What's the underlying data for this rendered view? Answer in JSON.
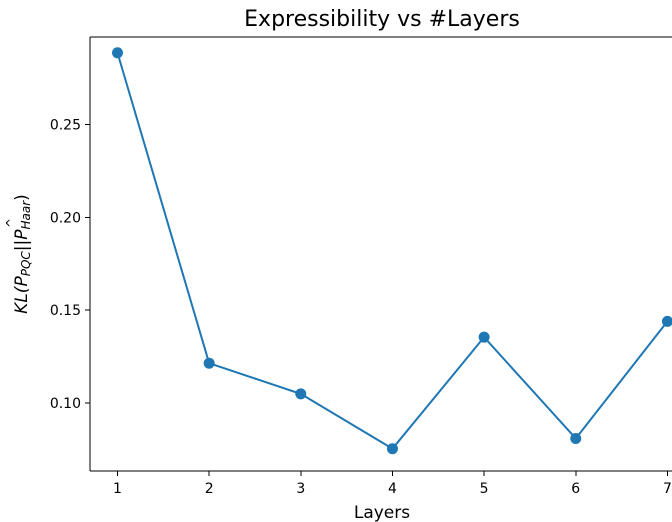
{
  "chart_data": {
    "type": "line",
    "title": "Expressibility vs #Layers",
    "xlabel": "Layers",
    "ylabel": {
      "base": "KL(",
      "hat_var": "P",
      "sub1": "PQC",
      "sep": "||",
      "var2": "P",
      "sub2": "Haar",
      "close": ")"
    },
    "x": [
      1,
      2,
      3,
      4,
      5,
      6,
      7
    ],
    "xticks": [
      "1",
      "2",
      "3",
      "4",
      "5",
      "6",
      "7"
    ],
    "yticks": [
      0.1,
      0.15,
      0.2,
      0.25
    ],
    "ytick_labels": [
      "0.10",
      "0.15",
      "0.20",
      "0.25"
    ],
    "xlim": [
      0.7,
      7.05
    ],
    "ylim": [
      0.0635,
      0.297
    ],
    "grid": false,
    "series": [
      {
        "color": "#1f77b4",
        "values": [
          0.2885,
          0.1215,
          0.105,
          0.0755,
          0.1355,
          0.081,
          0.144
        ]
      }
    ]
  }
}
